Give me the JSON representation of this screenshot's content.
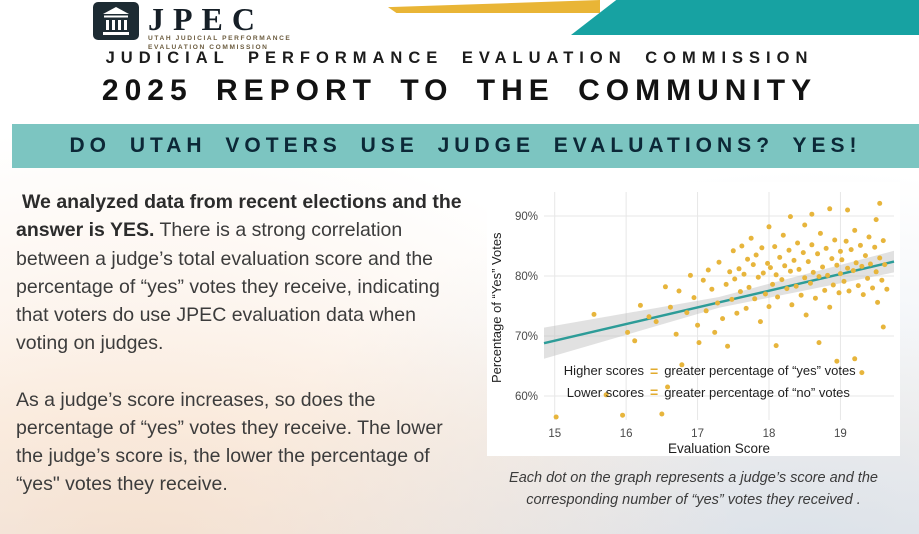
{
  "brand": {
    "logo_text": "JPEC",
    "logo_sub1": "UTAH JUDICIAL PERFORMANCE",
    "logo_sub2": "EVALUATION COMMISSION"
  },
  "header": {
    "org_line": "JUDICIAL PERFORMANCE EVALUATION COMMISSION",
    "title": "2025 REPORT TO THE COMMUNITY",
    "banner": "DO UTAH VOTERS USE JUDGE EVALUATIONS? YES!"
  },
  "body": {
    "p1_lead": "We analyzed data from recent elections and the answer is YES.",
    "p1_rest": "There is a strong correlation between a judge’s total evaluation score and the percentage of “yes” votes they receive, indicating that voters do use JPEC evaluation data when voting on judges.",
    "p2": "As a judge’s score increases, so does the percentage of “yes” votes they receive. The lower the judge’s score is, the lower the percentage of “yes\" votes they receive."
  },
  "chart_caption": "Each dot on the graph represents a judge’s score and the corresponding number of “yes” votes they received .",
  "colors": {
    "banner_teal": "#7cc5c1",
    "stripe_teal": "#17a2a2",
    "stripe_gold": "#e9b536",
    "dot_gold": "#e7b53c",
    "trend_teal": "#2d9c98"
  },
  "chart_data": {
    "type": "scatter",
    "xlabel": "Evaluation Score",
    "ylabel": "Percentage of “Yes”  Votes",
    "xlim": [
      14.85,
      19.75
    ],
    "ylim": [
      56,
      94
    ],
    "xticks": [
      15,
      16,
      17,
      18,
      19
    ],
    "yticks": [
      60,
      70,
      80,
      90
    ],
    "ytick_suffix": "%",
    "grid": true,
    "point_color": "#e7b53c",
    "trend": {
      "x1": 14.85,
      "y1": 68.8,
      "x2": 19.75,
      "y2": 82.4,
      "color": "#2d9c98",
      "band_widths": [
        2.6,
        0.9,
        1.8
      ],
      "band_color": "#bdbdbd"
    },
    "legend": [
      {
        "label": "Higher scores",
        "eq": "=",
        "text": "greater percentage of “yes” votes"
      },
      {
        "label": "Lower scores",
        "eq": "=",
        "text": "greater percentage of “no” votes"
      }
    ],
    "points": [
      [
        15.02,
        56.5
      ],
      [
        15.55,
        73.6
      ],
      [
        15.72,
        60.2
      ],
      [
        15.95,
        56.8
      ],
      [
        16.02,
        70.6
      ],
      [
        16.12,
        69.2
      ],
      [
        16.2,
        75.1
      ],
      [
        16.32,
        73.2
      ],
      [
        16.42,
        72.4
      ],
      [
        16.5,
        57.0
      ],
      [
        16.55,
        78.2
      ],
      [
        16.58,
        61.5
      ],
      [
        16.62,
        74.8
      ],
      [
        16.7,
        70.3
      ],
      [
        16.74,
        77.5
      ],
      [
        16.78,
        65.2
      ],
      [
        16.85,
        73.9
      ],
      [
        16.9,
        80.1
      ],
      [
        16.95,
        76.4
      ],
      [
        17.0,
        71.8
      ],
      [
        17.02,
        68.9
      ],
      [
        17.08,
        79.3
      ],
      [
        17.12,
        74.2
      ],
      [
        17.15,
        81.0
      ],
      [
        17.2,
        77.8
      ],
      [
        17.24,
        70.6
      ],
      [
        17.28,
        75.5
      ],
      [
        17.3,
        82.3
      ],
      [
        17.35,
        72.9
      ],
      [
        17.4,
        78.6
      ],
      [
        17.42,
        68.3
      ],
      [
        17.45,
        80.7
      ],
      [
        17.48,
        76.1
      ],
      [
        17.5,
        84.2
      ],
      [
        17.52,
        79.5
      ],
      [
        17.55,
        73.8
      ],
      [
        17.58,
        81.2
      ],
      [
        17.6,
        77.4
      ],
      [
        17.62,
        85.0
      ],
      [
        17.65,
        80.3
      ],
      [
        17.68,
        74.6
      ],
      [
        17.7,
        82.8
      ],
      [
        17.72,
        78.1
      ],
      [
        17.75,
        86.3
      ],
      [
        17.78,
        81.9
      ],
      [
        17.8,
        76.2
      ],
      [
        17.82,
        83.5
      ],
      [
        17.85,
        79.8
      ],
      [
        17.88,
        72.4
      ],
      [
        17.9,
        84.7
      ],
      [
        17.92,
        80.5
      ],
      [
        17.95,
        77.0
      ],
      [
        17.98,
        82.1
      ],
      [
        18.0,
        88.2
      ],
      [
        18.0,
        74.9
      ],
      [
        18.02,
        81.4
      ],
      [
        18.05,
        78.6
      ],
      [
        18.08,
        84.9
      ],
      [
        18.1,
        80.2
      ],
      [
        18.12,
        76.5
      ],
      [
        18.15,
        83.1
      ],
      [
        18.18,
        79.4
      ],
      [
        18.2,
        86.8
      ],
      [
        18.22,
        81.7
      ],
      [
        18.25,
        77.9
      ],
      [
        18.28,
        84.3
      ],
      [
        18.3,
        80.8
      ],
      [
        18.32,
        75.2
      ],
      [
        18.35,
        82.6
      ],
      [
        18.38,
        78.3
      ],
      [
        18.4,
        85.5
      ],
      [
        18.42,
        81.1
      ],
      [
        18.45,
        76.8
      ],
      [
        18.48,
        83.9
      ],
      [
        18.5,
        79.7
      ],
      [
        18.5,
        88.5
      ],
      [
        18.52,
        73.5
      ],
      [
        18.1,
        68.4
      ],
      [
        18.3,
        89.9
      ],
      [
        18.55,
        82.4
      ],
      [
        18.58,
        78.8
      ],
      [
        18.6,
        85.2
      ],
      [
        18.62,
        80.6
      ],
      [
        18.65,
        76.3
      ],
      [
        18.68,
        83.7
      ],
      [
        18.7,
        79.9
      ],
      [
        18.72,
        87.1
      ],
      [
        18.75,
        81.5
      ],
      [
        18.78,
        77.6
      ],
      [
        18.8,
        84.6
      ],
      [
        18.82,
        80.1
      ],
      [
        18.85,
        74.8
      ],
      [
        18.88,
        82.9
      ],
      [
        18.9,
        78.5
      ],
      [
        18.92,
        86.0
      ],
      [
        18.95,
        81.8
      ],
      [
        18.98,
        77.2
      ],
      [
        19.0,
        84.1
      ],
      [
        19.0,
        80.4
      ],
      [
        18.6,
        90.3
      ],
      [
        18.7,
        68.9
      ],
      [
        18.85,
        91.2
      ],
      [
        18.95,
        65.8
      ],
      [
        19.02,
        82.7
      ],
      [
        19.05,
        79.1
      ],
      [
        19.08,
        85.8
      ],
      [
        19.1,
        81.3
      ],
      [
        19.12,
        77.5
      ],
      [
        19.15,
        84.4
      ],
      [
        19.18,
        80.9
      ],
      [
        19.2,
        87.6
      ],
      [
        19.22,
        82.2
      ],
      [
        19.25,
        78.4
      ],
      [
        19.28,
        85.1
      ],
      [
        19.3,
        81.6
      ],
      [
        19.32,
        76.9
      ],
      [
        19.35,
        83.4
      ],
      [
        19.38,
        79.6
      ],
      [
        19.4,
        86.5
      ],
      [
        19.42,
        82.0
      ],
      [
        19.45,
        78.0
      ],
      [
        19.48,
        84.8
      ],
      [
        19.5,
        80.7
      ],
      [
        19.52,
        75.6
      ],
      [
        19.55,
        83.0
      ],
      [
        19.58,
        79.3
      ],
      [
        19.6,
        85.9
      ],
      [
        19.62,
        81.9
      ],
      [
        19.65,
        77.8
      ],
      [
        19.1,
        91.0
      ],
      [
        19.3,
        63.9
      ],
      [
        19.5,
        89.4
      ],
      [
        19.2,
        66.2
      ],
      [
        19.55,
        92.1
      ],
      [
        19.6,
        71.5
      ]
    ]
  }
}
